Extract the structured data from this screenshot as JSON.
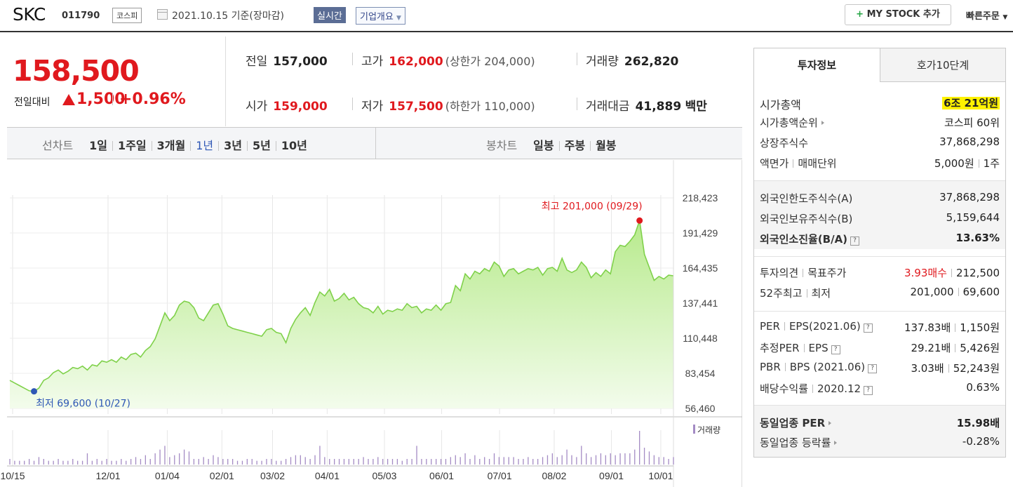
{
  "header": {
    "name": "SKC",
    "code": "011790",
    "market": "코스피",
    "date": "2021.10.15 기준(장마감)",
    "realtime_label": "실시간",
    "overview_label": "기업개요",
    "mystock_label": "MY STOCK 추가",
    "quick_order_label": "빠른주문"
  },
  "price": {
    "current": "158,500",
    "change_label": "전일대비",
    "change": "1,500",
    "change_pct": "+0.96%"
  },
  "summary": {
    "prev_label": "전일",
    "prev": "157,000",
    "high_label": "고가",
    "high": "162,000",
    "high_limit": "(상한가 204,000)",
    "volume_label": "거래량",
    "volume": "262,820",
    "open_label": "시가",
    "open": "159,000",
    "low_label": "저가",
    "low": "157,500",
    "low_limit": "(하한가 110,000)",
    "amount_label": "거래대금",
    "amount": "41,889",
    "amount_unit": "백만"
  },
  "tabs": {
    "line_title": "선차트",
    "line_tabs": [
      "1일",
      "1주일",
      "3개월",
      "1년",
      "3년",
      "5년",
      "10년"
    ],
    "active_tab": "1년",
    "candle_title": "봉차트",
    "candle_tabs": [
      "일봉",
      "주봉",
      "월봉"
    ]
  },
  "chart_data": {
    "type": "area",
    "y_ticks": [
      "218,423",
      "191,429",
      "164,435",
      "137,441",
      "110,448",
      "83,454",
      "56,460"
    ],
    "ylim": [
      56460,
      218423
    ],
    "x_labels": [
      "10/15",
      "12/01",
      "01/04",
      "02/01",
      "03/02",
      "04/01",
      "05/03",
      "06/01",
      "07/01",
      "08/02",
      "09/01",
      "10/01"
    ],
    "high_label": "최고 201,000 (09/29)",
    "low_label": "최저 69,600 (10/27)",
    "volume_label": "거래량",
    "series": [
      {
        "values": [
          78000,
          76000,
          74000,
          72000,
          70000,
          69600,
          72000,
          78000,
          80000,
          84000,
          86000,
          83000,
          85000,
          88000,
          87000,
          89000,
          86000,
          90000,
          89000,
          93000,
          92000,
          94000,
          92000,
          96000,
          94000,
          98000,
          99000,
          96000,
          101000,
          104000,
          110000,
          120000,
          130000,
          124000,
          128000,
          136000,
          139000,
          138000,
          134000,
          126000,
          124000,
          130000,
          136000,
          137000,
          129000,
          120000,
          118000,
          117000,
          116000,
          115000,
          114000,
          113000,
          112000,
          117000,
          118000,
          115000,
          114000,
          107000,
          118000,
          125000,
          130000,
          134000,
          128000,
          138000,
          146000,
          143000,
          148000,
          139000,
          141000,
          145000,
          140000,
          142000,
          137000,
          134000,
          133000,
          130000,
          135000,
          129000,
          132000,
          131000,
          133000,
          132000,
          137000,
          134000,
          135000,
          130000,
          133000,
          132000,
          136000,
          132000,
          137000,
          138000,
          151000,
          147000,
          160000,
          156000,
          162000,
          160000,
          164000,
          162000,
          169000,
          166000,
          158000,
          163000,
          164000,
          160000,
          162000,
          164000,
          163000,
          165000,
          159000,
          164000,
          165000,
          162000,
          172000,
          163000,
          161000,
          163000,
          169000,
          165000,
          157000,
          161000,
          158000,
          163000,
          160000,
          177000,
          182000,
          181000,
          185000,
          190000,
          201000,
          175000,
          165000,
          155000,
          158000,
          156000,
          159000,
          158500
        ]
      }
    ],
    "volume": [
      3,
      2,
      2,
      2,
      3,
      2,
      4,
      3,
      2,
      2,
      3,
      2,
      2,
      3,
      2,
      2,
      6,
      2,
      3,
      2,
      3,
      2,
      2,
      3,
      2,
      3,
      4,
      3,
      5,
      3,
      6,
      8,
      10,
      4,
      5,
      6,
      8,
      7,
      3,
      3,
      4,
      3,
      5,
      4,
      3,
      3,
      3,
      2,
      2,
      3,
      3,
      2,
      2,
      3,
      3,
      2,
      2,
      3,
      4,
      5,
      5,
      4,
      3,
      5,
      10,
      4,
      3,
      3,
      3,
      3,
      3,
      3,
      3,
      4,
      3,
      3,
      4,
      3,
      3,
      3,
      3,
      2,
      3,
      3,
      10,
      3,
      3,
      3,
      3,
      3,
      3,
      4,
      5,
      4,
      6,
      3,
      5,
      3,
      4,
      3,
      6,
      4,
      4,
      4,
      4,
      3,
      3,
      4,
      3,
      3,
      4,
      5,
      6,
      4,
      5,
      8,
      5,
      4,
      10,
      6,
      4,
      5,
      6,
      5,
      6,
      5,
      6,
      6,
      6,
      8,
      18,
      9,
      7,
      5,
      4,
      4,
      3,
      4
    ]
  },
  "invest": {
    "tab_active": "투자정보",
    "tab_other": "호가10단계",
    "market_cap_label": "시가총액",
    "market_cap": "6조 21억원",
    "market_cap_rank_label": "시가총액순위",
    "market_cap_rank": "코스피 60위",
    "listed_shares_label": "상장주식수",
    "listed_shares": "37,868,298",
    "par_label": "액면가",
    "unit_label": "매매단위",
    "par": "5,000원",
    "unit": "1주",
    "foreign_limit_label": "외국인한도주식수(A)",
    "foreign_limit": "37,868,298",
    "foreign_hold_label": "외국인보유주식수(B)",
    "foreign_hold": "5,159,644",
    "foreign_ratio_label": "외국인소진율(B/A)",
    "foreign_ratio": "13.63%",
    "opinion_label": "투자의견",
    "target_label": "목표주가",
    "opinion": "3.93매수",
    "target": "212,500",
    "week52_high_label": "52주최고",
    "week52_low_label": "최저",
    "week52_high": "201,000",
    "week52_low": "69,600",
    "per_label": "PER",
    "eps_label": "EPS(2021.06)",
    "per": "137.83배",
    "eps": "1,150원",
    "est_per_label": "추정PER",
    "est_eps_label": "EPS",
    "est_per": "29.21배",
    "est_eps": "5,426원",
    "pbr_label": "PBR",
    "bps_label": "BPS (2021.06)",
    "pbr": "3.03배",
    "bps": "52,243원",
    "div_label": "배당수익률",
    "div_date": "2020.12",
    "div": "0.63%",
    "industry_per_label": "동일업종 PER",
    "industry_per": "15.98배",
    "industry_chg_label": "동일업종 등락률",
    "industry_chg": "-0.28%"
  }
}
